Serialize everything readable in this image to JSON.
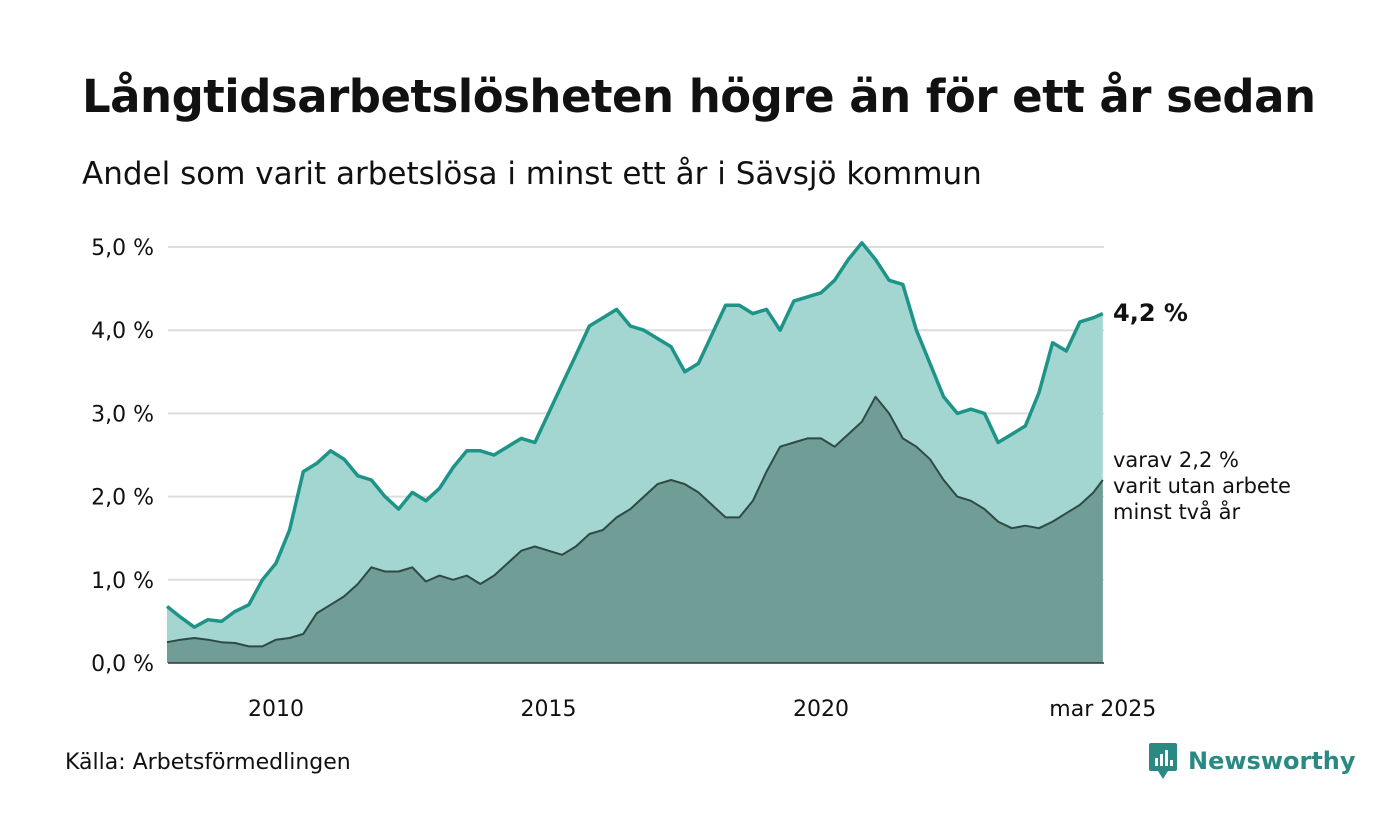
{
  "header": {
    "title": "Långtidsarbetslösheten högre än för ett år sedan",
    "subtitle": "Andel som varit arbetslösa i minst ett år i Sävsjö kommun"
  },
  "footer": {
    "source": "Källa: Arbetsförmedlingen",
    "brand": "Newsworthy"
  },
  "annotations": {
    "total_label": "4,2 %",
    "two_year_lines": [
      "varav 2,2 %",
      "varit utan arbete",
      "minst två år"
    ]
  },
  "colors": {
    "total_line": "#1e9488",
    "total_fill": "#a3d6d1",
    "two_year_line": "#2e4a44",
    "two_year_fill": "#709d96",
    "grid": "#dddddd",
    "brand": "#2a8a83"
  },
  "icons": {
    "brand_logo": "bar-chart-speech-bubble-icon"
  },
  "chart_data": {
    "type": "area",
    "x_unit": "year",
    "y_unit": "percent",
    "ylim": [
      0,
      5.2
    ],
    "xlim": [
      2008.0,
      2025.17
    ],
    "grid": "horizontal",
    "y_ticks": [
      0,
      1,
      2,
      3,
      4,
      5
    ],
    "y_tick_labels": [
      "0,0 %",
      "1,0 %",
      "2,0 %",
      "3,0 %",
      "4,0 %",
      "5,0 %"
    ],
    "x_ticks": [
      2010,
      2015,
      2020,
      2025.17
    ],
    "x_tick_labels": [
      "2010",
      "2015",
      "2020",
      "mar 2025"
    ],
    "series": [
      {
        "points": [
          [
            2008.0,
            0.68
          ],
          [
            2008.25,
            0.55
          ],
          [
            2008.5,
            0.43
          ],
          [
            2008.75,
            0.52
          ],
          [
            2009.0,
            0.5
          ],
          [
            2009.25,
            0.62
          ],
          [
            2009.5,
            0.7
          ],
          [
            2009.75,
            1.0
          ],
          [
            2010.0,
            1.2
          ],
          [
            2010.25,
            1.6
          ],
          [
            2010.5,
            2.3
          ],
          [
            2010.75,
            2.4
          ],
          [
            2011.0,
            2.55
          ],
          [
            2011.25,
            2.45
          ],
          [
            2011.5,
            2.25
          ],
          [
            2011.75,
            2.2
          ],
          [
            2012.0,
            2.0
          ],
          [
            2012.25,
            1.85
          ],
          [
            2012.5,
            2.05
          ],
          [
            2012.75,
            1.95
          ],
          [
            2013.0,
            2.1
          ],
          [
            2013.25,
            2.35
          ],
          [
            2013.5,
            2.55
          ],
          [
            2013.75,
            2.55
          ],
          [
            2014.0,
            2.5
          ],
          [
            2014.25,
            2.6
          ],
          [
            2014.5,
            2.7
          ],
          [
            2014.75,
            2.65
          ],
          [
            2015.0,
            3.0
          ],
          [
            2015.25,
            3.35
          ],
          [
            2015.5,
            3.7
          ],
          [
            2015.75,
            4.05
          ],
          [
            2016.0,
            4.15
          ],
          [
            2016.25,
            4.25
          ],
          [
            2016.5,
            4.05
          ],
          [
            2016.75,
            4.0
          ],
          [
            2017.0,
            3.9
          ],
          [
            2017.25,
            3.8
          ],
          [
            2017.5,
            3.5
          ],
          [
            2017.75,
            3.6
          ],
          [
            2018.0,
            3.95
          ],
          [
            2018.25,
            4.3
          ],
          [
            2018.5,
            4.3
          ],
          [
            2018.75,
            4.2
          ],
          [
            2019.0,
            4.25
          ],
          [
            2019.25,
            4.0
          ],
          [
            2019.5,
            4.35
          ],
          [
            2019.75,
            4.4
          ],
          [
            2020.0,
            4.45
          ],
          [
            2020.25,
            4.6
          ],
          [
            2020.5,
            4.85
          ],
          [
            2020.75,
            5.05
          ],
          [
            2021.0,
            4.85
          ],
          [
            2021.25,
            4.6
          ],
          [
            2021.5,
            4.55
          ],
          [
            2021.75,
            4.0
          ],
          [
            2022.0,
            3.6
          ],
          [
            2022.25,
            3.2
          ],
          [
            2022.5,
            3.0
          ],
          [
            2022.75,
            3.05
          ],
          [
            2023.0,
            3.0
          ],
          [
            2023.25,
            2.65
          ],
          [
            2023.5,
            2.75
          ],
          [
            2023.75,
            2.85
          ],
          [
            2024.0,
            3.25
          ],
          [
            2024.25,
            3.85
          ],
          [
            2024.5,
            3.75
          ],
          [
            2024.75,
            4.1
          ],
          [
            2025.0,
            4.15
          ],
          [
            2025.17,
            4.2
          ]
        ]
      },
      {
        "points": [
          [
            2008.0,
            0.25
          ],
          [
            2008.25,
            0.28
          ],
          [
            2008.5,
            0.3
          ],
          [
            2008.75,
            0.28
          ],
          [
            2009.0,
            0.25
          ],
          [
            2009.25,
            0.24
          ],
          [
            2009.5,
            0.2
          ],
          [
            2009.75,
            0.2
          ],
          [
            2010.0,
            0.28
          ],
          [
            2010.25,
            0.3
          ],
          [
            2010.5,
            0.35
          ],
          [
            2010.75,
            0.6
          ],
          [
            2011.0,
            0.7
          ],
          [
            2011.25,
            0.8
          ],
          [
            2011.5,
            0.95
          ],
          [
            2011.75,
            1.15
          ],
          [
            2012.0,
            1.1
          ],
          [
            2012.25,
            1.1
          ],
          [
            2012.5,
            1.15
          ],
          [
            2012.75,
            0.98
          ],
          [
            2013.0,
            1.05
          ],
          [
            2013.25,
            1.0
          ],
          [
            2013.5,
            1.05
          ],
          [
            2013.75,
            0.95
          ],
          [
            2014.0,
            1.05
          ],
          [
            2014.25,
            1.2
          ],
          [
            2014.5,
            1.35
          ],
          [
            2014.75,
            1.4
          ],
          [
            2015.0,
            1.35
          ],
          [
            2015.25,
            1.3
          ],
          [
            2015.5,
            1.4
          ],
          [
            2015.75,
            1.55
          ],
          [
            2016.0,
            1.6
          ],
          [
            2016.25,
            1.75
          ],
          [
            2016.5,
            1.85
          ],
          [
            2016.75,
            2.0
          ],
          [
            2017.0,
            2.15
          ],
          [
            2017.25,
            2.2
          ],
          [
            2017.5,
            2.15
          ],
          [
            2017.75,
            2.05
          ],
          [
            2018.0,
            1.9
          ],
          [
            2018.25,
            1.75
          ],
          [
            2018.5,
            1.75
          ],
          [
            2018.75,
            1.95
          ],
          [
            2019.0,
            2.3
          ],
          [
            2019.25,
            2.6
          ],
          [
            2019.5,
            2.65
          ],
          [
            2019.75,
            2.7
          ],
          [
            2020.0,
            2.7
          ],
          [
            2020.25,
            2.6
          ],
          [
            2020.5,
            2.75
          ],
          [
            2020.75,
            2.9
          ],
          [
            2021.0,
            3.2
          ],
          [
            2021.25,
            3.0
          ],
          [
            2021.5,
            2.7
          ],
          [
            2021.75,
            2.6
          ],
          [
            2022.0,
            2.45
          ],
          [
            2022.25,
            2.2
          ],
          [
            2022.5,
            2.0
          ],
          [
            2022.75,
            1.95
          ],
          [
            2023.0,
            1.85
          ],
          [
            2023.25,
            1.7
          ],
          [
            2023.5,
            1.62
          ],
          [
            2023.75,
            1.65
          ],
          [
            2024.0,
            1.62
          ],
          [
            2024.25,
            1.7
          ],
          [
            2024.5,
            1.8
          ],
          [
            2024.75,
            1.9
          ],
          [
            2025.0,
            2.05
          ],
          [
            2025.17,
            2.2
          ]
        ]
      }
    ]
  }
}
